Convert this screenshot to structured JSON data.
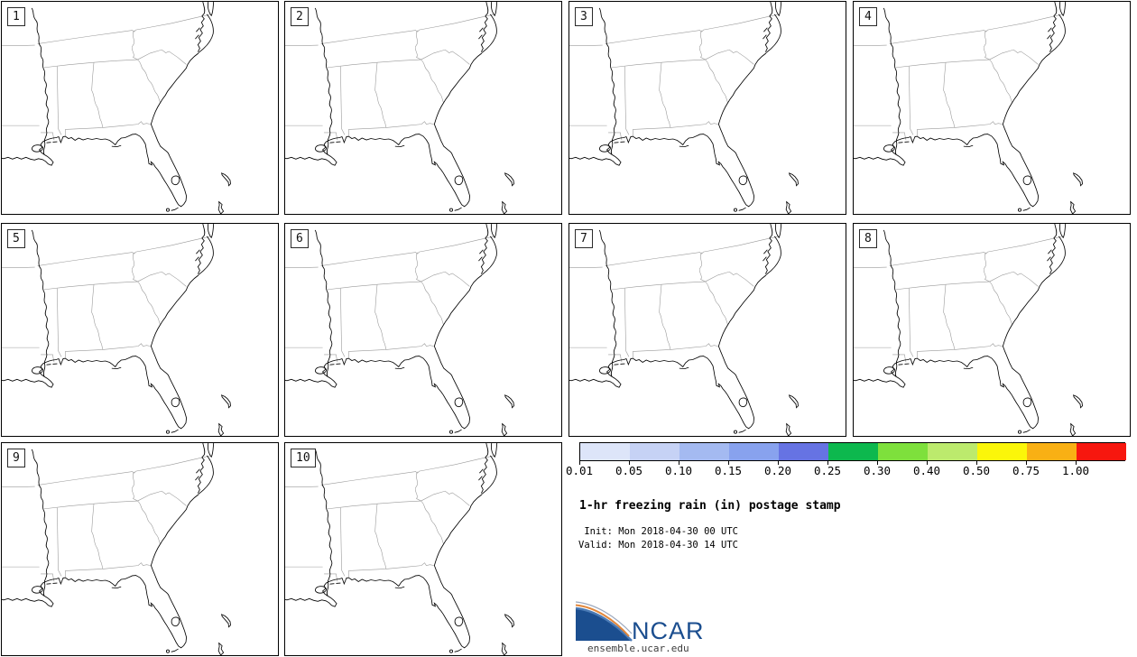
{
  "figure": {
    "title": "1-hr freezing rain (in) postage stamp",
    "init_line": " Init: Mon 2018-04-30 00 UTC",
    "valid_line": "Valid: Mon 2018-04-30 14 UTC"
  },
  "panels": [
    {
      "label": "1"
    },
    {
      "label": "2"
    },
    {
      "label": "3"
    },
    {
      "label": "4"
    },
    {
      "label": "5"
    },
    {
      "label": "6"
    },
    {
      "label": "7"
    },
    {
      "label": "8"
    },
    {
      "label": "9"
    },
    {
      "label": "10"
    }
  ],
  "colorbar": {
    "ticks": [
      "0.01",
      "0.05",
      "0.10",
      "0.15",
      "0.20",
      "0.25",
      "0.30",
      "0.40",
      "0.50",
      "0.75",
      "1.00"
    ],
    "segments": [
      "#dde5f9",
      "#c6d2f5",
      "#a4baf1",
      "#88a2ee",
      "#6673e3",
      "#0db84e",
      "#7ee03c",
      "#bcea6d",
      "#fbf609",
      "#f9b014",
      "#f7170f"
    ]
  },
  "map": {
    "region": "southeastern United States",
    "coast_color": "#000000",
    "state_border_color": "#9a9a9a"
  },
  "logo": {
    "text": "NCAR",
    "site": "ensemble.ucar.edu",
    "navy": "#1b4e8f",
    "orange": "#e2873b",
    "lightblue": "#4a7ab5",
    "slate": "#9aa7bd"
  }
}
